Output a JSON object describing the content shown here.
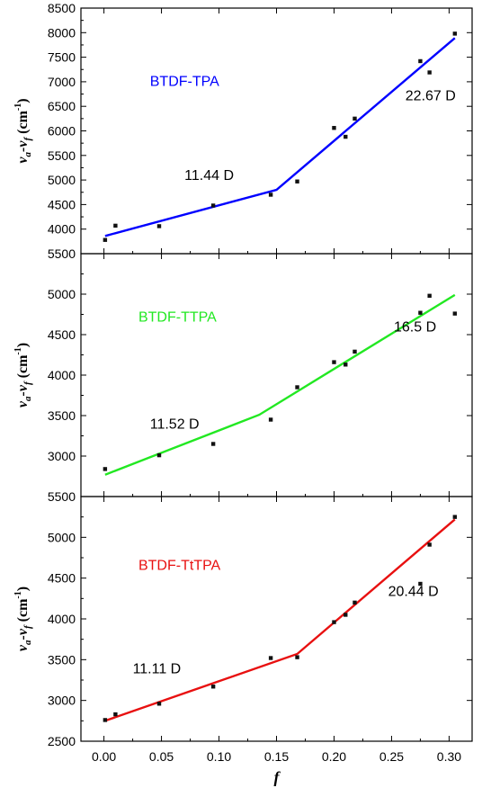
{
  "chart_data": [
    {
      "type": "scatter",
      "x_range": [
        -0.02,
        0.32
      ],
      "ylim": [
        3500,
        8500
      ],
      "y_ticks": [
        4000,
        4500,
        5000,
        5500,
        6000,
        6500,
        7000,
        7500,
        8000,
        8500
      ],
      "y_tick_labels": [
        "4000",
        "4500",
        "5000",
        "5500",
        "6000",
        "6500",
        "7000",
        "7500",
        "8000",
        "8500"
      ],
      "ylabel_main": "ν",
      "ylabel_sub1": "a",
      "ylabel_sep": "-ν",
      "ylabel_sub2": "f",
      "ylabel_unit": " (cm",
      "ylabel_sup": "-1",
      "ylabel_close": ")",
      "series_label": "BTDF-TPA",
      "color": "#0000ff",
      "points": [
        [
          0.001,
          3780
        ],
        [
          0.01,
          4070
        ],
        [
          0.048,
          4060
        ],
        [
          0.095,
          4480
        ],
        [
          0.145,
          4700
        ],
        [
          0.168,
          4970
        ],
        [
          0.2,
          6060
        ],
        [
          0.21,
          5880
        ],
        [
          0.218,
          6250
        ],
        [
          0.275,
          7420
        ],
        [
          0.283,
          7190
        ],
        [
          0.305,
          7980
        ]
      ],
      "fit_line": [
        [
          0.001,
          3860
        ],
        [
          0.15,
          4800
        ],
        [
          0.305,
          7890
        ]
      ],
      "annotations": [
        {
          "text": "11.44 D",
          "x": 0.07,
          "y": 5000
        },
        {
          "text": "22.67 D",
          "x": 0.262,
          "y": 6620
        }
      ],
      "series_label_pos": [
        0.04,
        6920
      ]
    },
    {
      "type": "scatter",
      "x_range": [
        -0.02,
        0.32
      ],
      "ylim": [
        2500,
        5500
      ],
      "y_ticks": [
        3000,
        3500,
        4000,
        4500,
        5000,
        5500
      ],
      "y_tick_labels": [
        "3000",
        "3500",
        "4000",
        "4500",
        "5000",
        "5500"
      ],
      "ylabel_main": "ν",
      "ylabel_sub1": "a",
      "ylabel_sep": "-ν",
      "ylabel_sub2": "f",
      "ylabel_unit": " (cm",
      "ylabel_sup": "-1",
      "ylabel_close": ")",
      "series_label": "BTDF-TTPA",
      "color": "#22e822",
      "points": [
        [
          0.001,
          2840
        ],
        [
          0.048,
          3010
        ],
        [
          0.095,
          3150
        ],
        [
          0.145,
          3450
        ],
        [
          0.168,
          3850
        ],
        [
          0.2,
          4160
        ],
        [
          0.21,
          4130
        ],
        [
          0.218,
          4290
        ],
        [
          0.275,
          4770
        ],
        [
          0.283,
          4980
        ],
        [
          0.305,
          4760
        ]
      ],
      "fit_line": [
        [
          0.001,
          2770
        ],
        [
          0.135,
          3510
        ],
        [
          0.305,
          4990
        ]
      ],
      "annotations": [
        {
          "text": "11.52 D",
          "x": 0.04,
          "y": 3340
        },
        {
          "text": "16.5 D",
          "x": 0.252,
          "y": 4540
        }
      ],
      "series_label_pos": [
        0.03,
        4660
      ]
    },
    {
      "type": "scatter",
      "x_range": [
        -0.02,
        0.32
      ],
      "ylim": [
        2500,
        5500
      ],
      "y_ticks": [
        2500,
        3000,
        3500,
        4000,
        4500,
        5000,
        5500
      ],
      "y_tick_labels": [
        "2500",
        "3000",
        "3500",
        "4000",
        "4500",
        "5000",
        "5500"
      ],
      "ylabel_main": "ν",
      "ylabel_sub1": "a",
      "ylabel_sep": "-ν",
      "ylabel_sub2": "f",
      "ylabel_unit": " (cm",
      "ylabel_sup": "-1",
      "ylabel_close": ")",
      "series_label": "BTDF-TtTPA",
      "color": "#e81010",
      "points": [
        [
          0.001,
          2760
        ],
        [
          0.01,
          2830
        ],
        [
          0.048,
          2960
        ],
        [
          0.095,
          3170
        ],
        [
          0.145,
          3520
        ],
        [
          0.168,
          3530
        ],
        [
          0.2,
          3960
        ],
        [
          0.21,
          4050
        ],
        [
          0.218,
          4200
        ],
        [
          0.275,
          4430
        ],
        [
          0.283,
          4910
        ],
        [
          0.305,
          5250
        ]
      ],
      "fit_line": [
        [
          0.001,
          2750
        ],
        [
          0.168,
          3570
        ],
        [
          0.305,
          5220
        ]
      ],
      "annotations": [
        {
          "text": "11.11 D",
          "x": 0.025,
          "y": 3330
        },
        {
          "text": "20.44 D",
          "x": 0.247,
          "y": 4280
        }
      ],
      "series_label_pos": [
        0.03,
        4600
      ]
    }
  ],
  "x_axis": {
    "ticks": [
      0.0,
      0.05,
      0.1,
      0.15,
      0.2,
      0.25,
      0.3
    ],
    "tick_labels": [
      "0.00",
      "0.05",
      "0.10",
      "0.15",
      "0.20",
      "0.25",
      "0.30"
    ],
    "label": "f"
  }
}
